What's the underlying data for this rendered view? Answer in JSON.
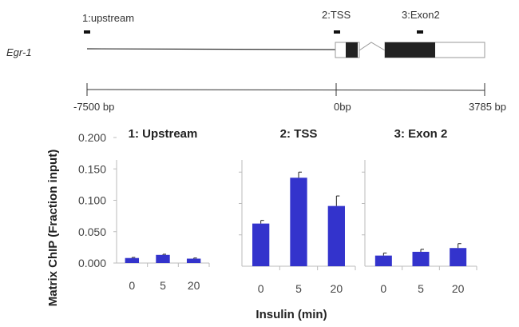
{
  "gene_map": {
    "gene_name": "Egr-1",
    "regions": [
      "1:upstream",
      "2:TSS",
      "3:Exon2"
    ],
    "scale_labels": [
      "-7500 bp",
      "0bp",
      "3785 bp"
    ]
  },
  "chart_data": {
    "type": "bar",
    "ylabel": "Matrix ChIP (Fraction input)",
    "xlabel": "Insulin  (min)",
    "ylim": [
      0,
      0.2
    ],
    "yticks": [
      "0.000",
      "0.050",
      "0.100",
      "0.150",
      "0.200"
    ],
    "categories": [
      "0",
      "5",
      "20"
    ],
    "bar_color": "#3333cc",
    "panels": [
      {
        "title": "1: Upstream",
        "values": [
          0.008,
          0.013,
          0.007
        ],
        "errors": [
          0.001,
          0.001,
          0.001
        ]
      },
      {
        "title": "2: TSS",
        "values": [
          0.068,
          0.141,
          0.096
        ],
        "errors": [
          0.005,
          0.009,
          0.016
        ]
      },
      {
        "title": "3: Exon 2",
        "values": [
          0.017,
          0.023,
          0.029
        ],
        "errors": [
          0.004,
          0.004,
          0.007
        ]
      }
    ]
  }
}
